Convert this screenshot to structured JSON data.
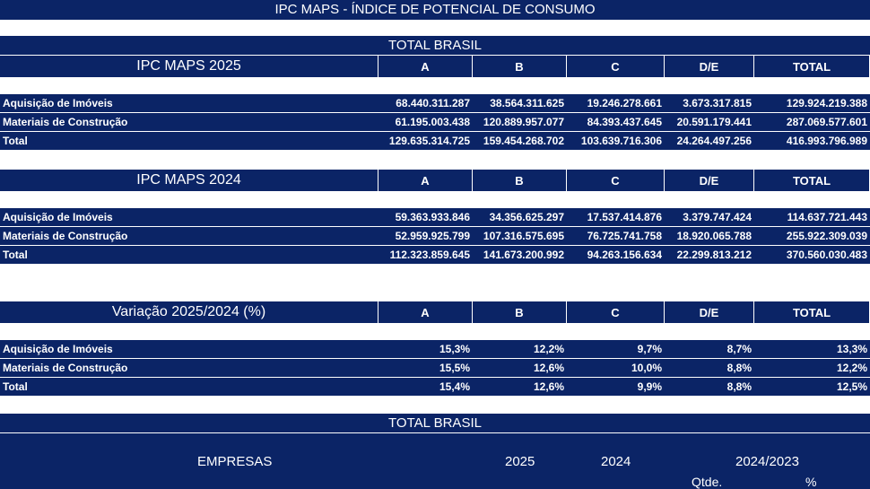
{
  "title": "IPC MAPS - ÍNDICE DE POTENCIAL DE CONSUMO",
  "total_brasil_label": "TOTAL BRASIL",
  "columns": [
    "A",
    "B",
    "C",
    "D/E",
    "TOTAL"
  ],
  "tables": [
    {
      "label": "IPC MAPS 2025",
      "rows": [
        {
          "label": "Aquisição de Imóveis",
          "values": [
            "68.440.311.287",
            "38.564.311.625",
            "19.246.278.661",
            "3.673.317.815",
            "129.924.219.388"
          ]
        },
        {
          "label": "Materiais de Construção",
          "values": [
            "61.195.003.438",
            "120.889.957.077",
            "84.393.437.645",
            "20.591.179.441",
            "287.069.577.601"
          ]
        },
        {
          "label": "Total",
          "values": [
            "129.635.314.725",
            "159.454.268.702",
            "103.639.716.306",
            "24.264.497.256",
            "416.993.796.989"
          ]
        }
      ]
    },
    {
      "label": "IPC MAPS 2024",
      "rows": [
        {
          "label": "Aquisição de Imóveis",
          "values": [
            "59.363.933.846",
            "34.356.625.297",
            "17.537.414.876",
            "3.379.747.424",
            "114.637.721.443"
          ]
        },
        {
          "label": "Materiais de Construção",
          "values": [
            "52.959.925.799",
            "107.316.575.695",
            "76.725.741.758",
            "18.920.065.788",
            "255.922.309.039"
          ]
        },
        {
          "label": "Total",
          "values": [
            "112.323.859.645",
            "141.673.200.992",
            "94.263.156.634",
            "22.299.813.212",
            "370.560.030.483"
          ]
        }
      ]
    },
    {
      "label": "Variação 2025/2024 (%)",
      "rows": [
        {
          "label": "Aquisição de Imóveis",
          "values": [
            "15,3%",
            "12,2%",
            "9,7%",
            "8,7%",
            "13,3%"
          ]
        },
        {
          "label": "Materiais de Construção",
          "values": [
            "15,5%",
            "12,6%",
            "10,0%",
            "8,8%",
            "12,2%"
          ]
        },
        {
          "label": "Total",
          "values": [
            "15,4%",
            "12,6%",
            "9,9%",
            "8,8%",
            "12,5%"
          ]
        }
      ]
    }
  ],
  "empresas": {
    "total_brasil_label": "TOTAL BRASIL",
    "empresas_label": "EMPRESAS",
    "y2025": "2025",
    "y2024": "2024",
    "y2024_2023": "2024/2023",
    "qtde": "Qtde.",
    "pct": "%"
  }
}
